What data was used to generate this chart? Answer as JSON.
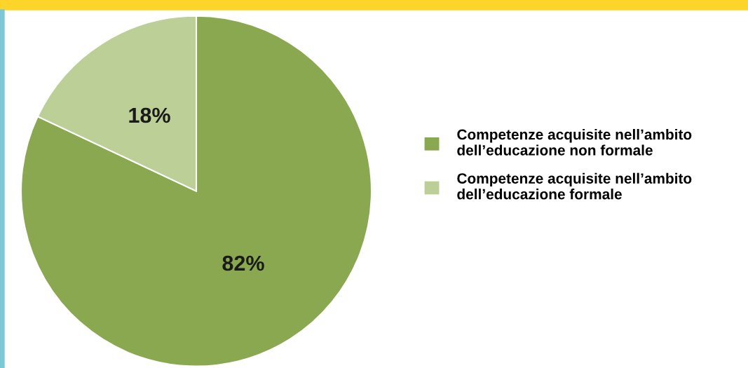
{
  "chart_data": {
    "type": "pie",
    "categories": [
      "Competenze acquisite nell’ambito dell’educazione non formale",
      "Competenze acquisite nell’ambito dell’educazione formale"
    ],
    "values": [
      82,
      18
    ],
    "colors": [
      "#8aa84f",
      "#bccf96"
    ],
    "value_labels": [
      "82%",
      "18%"
    ],
    "legend": "right"
  }
}
